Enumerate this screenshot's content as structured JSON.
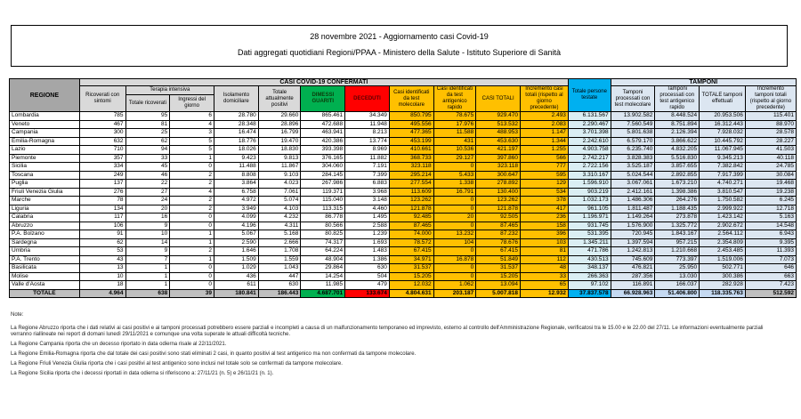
{
  "title": {
    "line1": "28 novembre 2021 - Aggiornamento casi Covid-19",
    "line2": "Dati aggregati quotidiani Regioni/PPAA - Ministero della Salute - Istituto Superiore di Sanità"
  },
  "colors": {
    "green": "#00b050",
    "red": "#ff0000",
    "yellow": "#ffc000",
    "cyan": "#00b0f0",
    "light_blue": "#dce6f1",
    "header_gray": "#d9d9d9",
    "region_header_gray": "#a6a6a6",
    "total_row_gray": "#bfbfbf"
  },
  "table": {
    "banner": {
      "confermati": "CASI COVID-19 CONFERMATI",
      "tamponi": "TAMPONI"
    },
    "headers": {
      "regione": "REGIONE",
      "ricoverati": "Ricoverati con sintomi",
      "terapia_intensiva": "Terapia intensiva",
      "totale_ricoverati": "Totale ricoverati",
      "ingressi": "Ingressi del giorno",
      "isolamento": "Isolamento domiciliare",
      "attualmente_positivi": "Totale attualmente positivi",
      "dimessi": "DIMESSI GUARITI",
      "deceduti": "DECEDUTI",
      "casi_molecolare": "Casi identificati da test molecolare",
      "casi_antigenico": "Casi identificati da test antigenico rapido",
      "casi_totali": "CASI TOTALI",
      "incremento_casi": "Incremento casi totali (rispetto al giorno precedente)",
      "persone_testate": "Totale persone testate",
      "tamponi_molecolare": "Tamponi processati con test molecolare",
      "tamponi_antigenico": "Tamponi processati con test antigenico rapido",
      "totale_tamponi": "TOTALE tamponi effettuati",
      "incremento_tamponi": "Incremento tamponi totali (rispetto al giorno precedente)"
    },
    "rows": [
      {
        "region": "Lombardia",
        "values": [
          "785",
          "95",
          "6",
          "28.780",
          "29.660",
          "865.461",
          "34.349",
          "850.795",
          "78.675",
          "929.470",
          "2.493",
          "6.131.567",
          "13.902.582",
          "8.448.524",
          "20.953.506",
          "115.401"
        ]
      },
      {
        "region": "Veneto",
        "values": [
          "467",
          "81",
          "4",
          "28.348",
          "28.896",
          "472.688",
          "11.948",
          "495.556",
          "17.976",
          "513.532",
          "2.083",
          "2.290.467",
          "7.560.549",
          "8.751.894",
          "16.312.443",
          "88.970"
        ]
      },
      {
        "region": "Campania",
        "values": [
          "300",
          "25",
          "3",
          "16.474",
          "16.799",
          "463.941",
          "8.213",
          "477.365",
          "11.588",
          "488.953",
          "1.147",
          "3.701.398",
          "5.801.638",
          "2.126.394",
          "7.928.032",
          "28.578"
        ]
      },
      {
        "region": "Emilia-Romagna",
        "values": [
          "632",
          "62",
          "5",
          "18.776",
          "19.470",
          "420.386",
          "13.774",
          "453.199",
          "431",
          "453.630",
          "1.344",
          "2.242.610",
          "6.579.170",
          "3.866.622",
          "10.445.792",
          "28.227"
        ]
      },
      {
        "region": "Lazio",
        "values": [
          "710",
          "94",
          "5",
          "18.026",
          "18.830",
          "393.398",
          "8.969",
          "410.661",
          "10.536",
          "421.197",
          "1.255",
          "4.903.758",
          "6.235.740",
          "4.832.205",
          "11.067.945",
          "41.503"
        ]
      },
      {
        "region": "Piemonte",
        "values": [
          "357",
          "33",
          "1",
          "9.423",
          "9.813",
          "376.165",
          "11.882",
          "368.733",
          "29.127",
          "397.860",
          "566",
          "2.742.217",
          "3.828.383",
          "5.516.830",
          "9.345.213",
          "40.118"
        ]
      },
      {
        "region": "Sicilia",
        "values": [
          "334",
          "45",
          "0",
          "11.488",
          "11.867",
          "304.060",
          "7.191",
          "323.118",
          "0",
          "323.118",
          "777",
          "2.722.156",
          "3.525.187",
          "3.857.655",
          "7.382.842",
          "24.785"
        ]
      },
      {
        "region": "Toscana",
        "values": [
          "249",
          "46",
          "2",
          "8.808",
          "9.103",
          "284.145",
          "7.399",
          "295.214",
          "5.433",
          "300.647",
          "595",
          "3.310.167",
          "5.024.544",
          "2.892.855",
          "7.917.399",
          "30.084"
        ]
      },
      {
        "region": "Puglia",
        "values": [
          "137",
          "22",
          "2",
          "3.864",
          "4.023",
          "267.986",
          "6.883",
          "277.554",
          "1.338",
          "278.892",
          "129",
          "1.596.910",
          "3.067.061",
          "1.673.210",
          "4.740.271",
          "19.468"
        ]
      },
      {
        "region": "Friuli Venezia Giulia",
        "values": [
          "276",
          "27",
          "4",
          "6.758",
          "7.061",
          "119.371",
          "3.968",
          "113.609",
          "16.791",
          "130.400",
          "534",
          "903.219",
          "2.412.161",
          "1.398.386",
          "3.810.547",
          "19.238"
        ]
      },
      {
        "region": "Marche",
        "values": [
          "78",
          "24",
          "2",
          "4.972",
          "5.074",
          "115.040",
          "3.148",
          "123.262",
          "0",
          "123.262",
          "378",
          "1.032.173",
          "1.486.306",
          "264.276",
          "1.750.582",
          "6.245"
        ]
      },
      {
        "region": "Liguria",
        "values": [
          "134",
          "20",
          "2",
          "3.949",
          "4.103",
          "113.315",
          "4.460",
          "121.878",
          "0",
          "121.878",
          "417",
          "961.105",
          "1.811.487",
          "1.188.435",
          "2.999.922",
          "12.718"
        ]
      },
      {
        "region": "Calabria",
        "values": [
          "117",
          "16",
          "0",
          "4.099",
          "4.232",
          "86.778",
          "1.495",
          "92.485",
          "20",
          "92.505",
          "236",
          "1.196.971",
          "1.149.264",
          "273.878",
          "1.423.142",
          "5.163"
        ]
      },
      {
        "region": "Abruzzo",
        "values": [
          "106",
          "9",
          "0",
          "4.196",
          "4.311",
          "80.566",
          "2.588",
          "87.465",
          "0",
          "87.465",
          "158",
          "931.745",
          "1.576.900",
          "1.325.772",
          "2.902.672",
          "14.548"
        ]
      },
      {
        "region": "P.A. Bolzano",
        "values": [
          "91",
          "10",
          "1",
          "5.067",
          "5.168",
          "80.825",
          "1.239",
          "74.000",
          "13.232",
          "87.232",
          "396",
          "531.395",
          "720.945",
          "1.843.167",
          "2.564.112",
          "6.943"
        ]
      },
      {
        "region": "Sardegna",
        "values": [
          "62",
          "14",
          "1",
          "2.590",
          "2.666",
          "74.317",
          "1.693",
          "78.572",
          "104",
          "78.676",
          "103",
          "1.345.211",
          "1.397.594",
          "957.215",
          "2.354.809",
          "9.395"
        ]
      },
      {
        "region": "Umbria",
        "values": [
          "53",
          "9",
          "2",
          "1.646",
          "1.708",
          "64.224",
          "1.483",
          "67.415",
          "0",
          "67.415",
          "81",
          "471.786",
          "1.242.813",
          "1.210.668",
          "2.453.485",
          "11.393"
        ]
      },
      {
        "region": "P.A. Trento",
        "values": [
          "43",
          "7",
          "1",
          "1.509",
          "1.559",
          "48.904",
          "1.386",
          "34.971",
          "16.878",
          "51.849",
          "112",
          "430.513",
          "745.609",
          "773.397",
          "1.519.006",
          "7.073"
        ]
      },
      {
        "region": "Basilicata",
        "values": [
          "13",
          "1",
          "0",
          "1.029",
          "1.043",
          "29.864",
          "630",
          "31.537",
          "0",
          "31.537",
          "48",
          "348.137",
          "476.821",
          "25.950",
          "502.771",
          "646"
        ]
      },
      {
        "region": "Molise",
        "values": [
          "10",
          "1",
          "0",
          "436",
          "447",
          "14.254",
          "504",
          "15.205",
          "0",
          "15.205",
          "33",
          "266.363",
          "287.356",
          "13.030",
          "300.386",
          "663"
        ]
      },
      {
        "region": "Valle d'Aosta",
        "values": [
          "18",
          "1",
          "0",
          "611",
          "630",
          "11.985",
          "479",
          "12.032",
          "1.062",
          "13.094",
          "65",
          "97.102",
          "116.891",
          "166.037",
          "282.928",
          "7.423"
        ]
      }
    ],
    "total_row": {
      "region": "TOTALE",
      "values": [
        "4.964",
        "638",
        "39",
        "180.841",
        "186.443",
        "4.687.701",
        "133.674",
        "4.804.631",
        "203.187",
        "5.007.818",
        "12.932",
        "37.837.578",
        "66.928.963",
        "51.406.800",
        "118.335.763",
        "512.592"
      ]
    }
  },
  "notes": {
    "label": "Note:",
    "items": [
      "La Regione Abruzzo riporta che i dati relativi ai casi positivi e ai tamponi processati potrebbero essere parziali e incompleti a causa di un malfunzionamento temporaneo ed imprevisto, esterno al controllo dell'Amministrazione Regionale, verificatosi tra le 15.00 e le 22.00 del 27/11. Le informazioni eventualmente parziali verranno riallineate nei report di domani lunedì 29/11/2021 e comunque una volta superate le attuali difficoltà tecniche.",
      "La Regione Campania riporta che un decesso riportato in data odierna risale al 22/11/2021.",
      "La Regione Emilia-Romagna riporta che dal totale dei casi positivi sono stati eliminati 2 casi, in quanto positivi al test antigenico ma non confermati da tampone molecolare.",
      "La Regione Friuli Venezia Giulia riporta che i casi positivi al test antigenico sono inclusi nel totale solo se confermati da tampone molecolare.",
      "La Regione Sicilia riporta che i decessi riportati in data odierna si riferiscono a: 27/11/21 (n. 5) e 26/11/21 (n. 1)."
    ]
  }
}
